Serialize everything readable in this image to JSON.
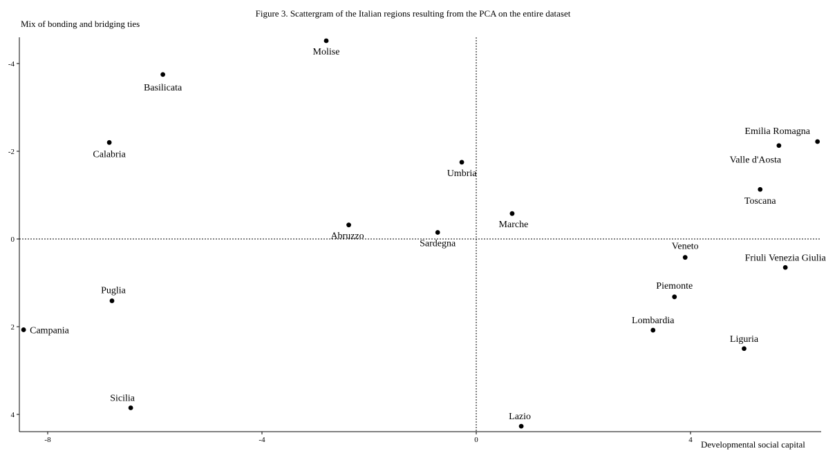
{
  "chart_data": {
    "type": "scatter",
    "title": "Figure 3. Scattergram of the Italian regions resulting from the PCA on the entire dataset",
    "xlabel": "Developmental social capital",
    "ylabel": "Mix of bonding and bridging ties",
    "xlim": [
      -8.5,
      6.4
    ],
    "ylim": [
      -4.6,
      4.1
    ],
    "y_axis_inverted": true,
    "x_ticks": [
      -8,
      -4,
      0,
      4
    ],
    "y_ticks": [
      -4,
      -2,
      0,
      2,
      4
    ],
    "grid": false,
    "reference_lines": "dotted lines at x=0 and y=0",
    "points": [
      {
        "name": "Molise",
        "x": -2.8,
        "y": -4.52
      },
      {
        "name": "Basilicata",
        "x": -5.85,
        "y": -3.75
      },
      {
        "name": "Calabria",
        "x": -6.85,
        "y": -2.2
      },
      {
        "name": "Umbria",
        "x": -0.27,
        "y": -1.75
      },
      {
        "name": "Marche",
        "x": 0.67,
        "y": -0.58
      },
      {
        "name": "Abruzzo",
        "x": -2.38,
        "y": -0.32
      },
      {
        "name": "Sardegna",
        "x": -0.72,
        "y": -0.15
      },
      {
        "name": "Emilia Romagna",
        "x": 6.37,
        "y": -2.22
      },
      {
        "name": "Valle d'Aosta",
        "x": 5.65,
        "y": -2.13
      },
      {
        "name": "Toscana",
        "x": 5.3,
        "y": -1.13
      },
      {
        "name": "Veneto",
        "x": 3.9,
        "y": 0.42
      },
      {
        "name": "Friuli Venezia Giulia",
        "x": 5.77,
        "y": 0.65
      },
      {
        "name": "Piemonte",
        "x": 3.7,
        "y": 1.32
      },
      {
        "name": "Lombardia",
        "x": 3.3,
        "y": 2.08
      },
      {
        "name": "Liguria",
        "x": 5.0,
        "y": 2.5
      },
      {
        "name": "Puglia",
        "x": -6.8,
        "y": 1.41
      },
      {
        "name": "Campania",
        "x": -8.45,
        "y": 2.07
      },
      {
        "name": "Sicilia",
        "x": -6.45,
        "y": 3.85
      },
      {
        "name": "Lazio",
        "x": 0.84,
        "y": 4.27
      }
    ]
  }
}
